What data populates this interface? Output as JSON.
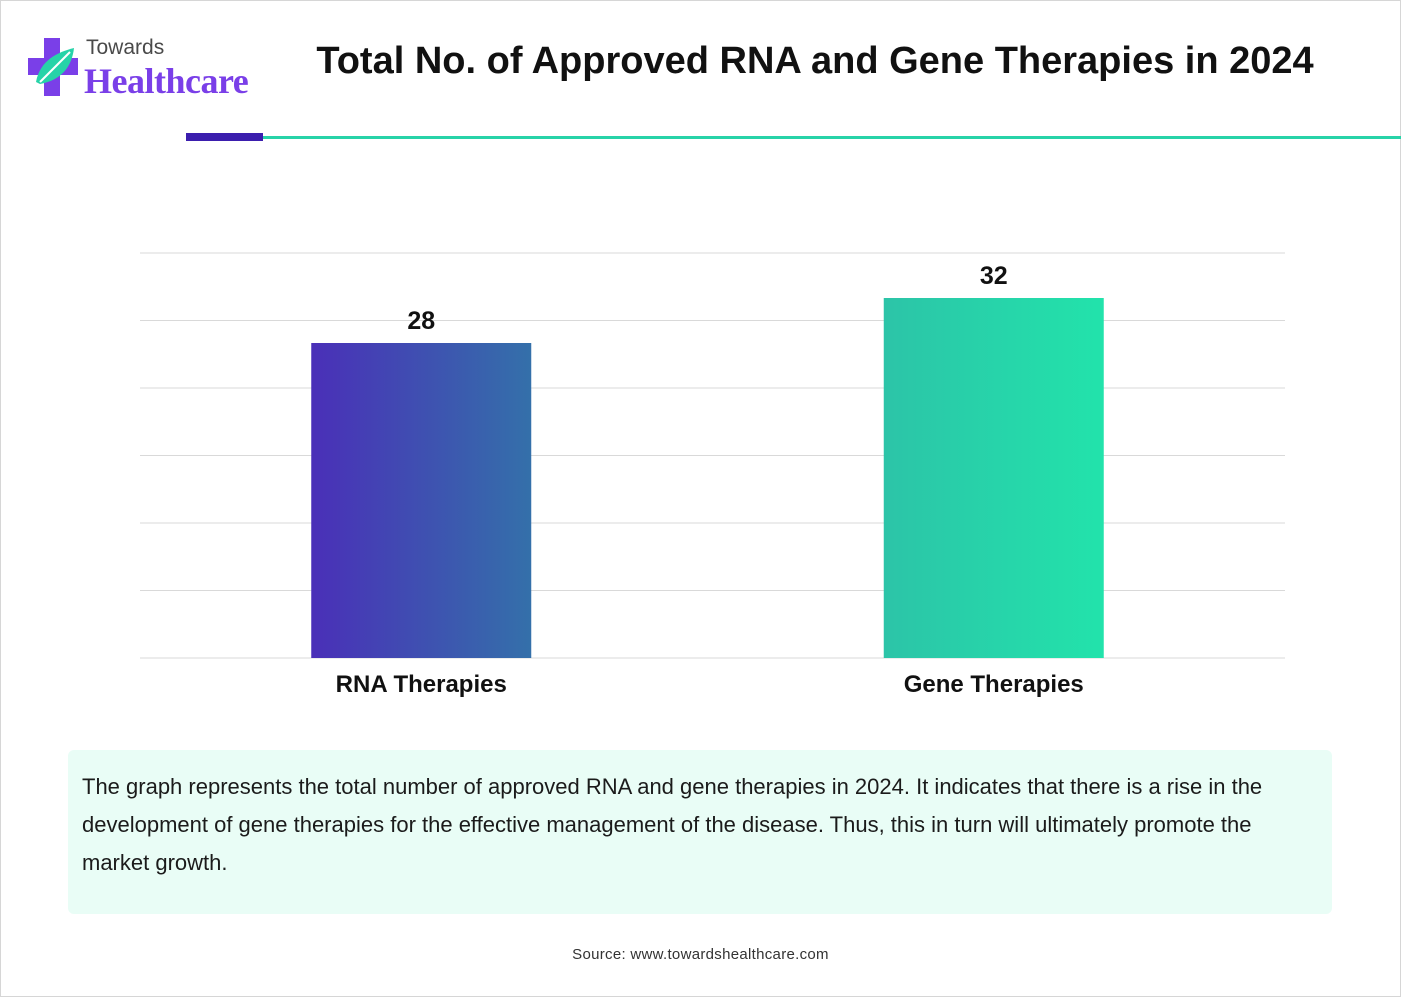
{
  "brand": {
    "top_word": "Towards",
    "main_word": "Healthcare",
    "colors": {
      "purple": "#7a3fe8",
      "teal": "#27d3a8",
      "navy": "#3b1eae"
    }
  },
  "title": "Total No. of Approved RNA and Gene Therapies in 2024",
  "chart_data": {
    "type": "bar",
    "title": "Total No. of Approved RNA and Gene Therapies in 2024",
    "categories": [
      "RNA Therapies",
      "Gene Therapies"
    ],
    "values": [
      28,
      32
    ],
    "ylim": [
      0,
      36
    ],
    "xlabel": "",
    "ylabel": "",
    "grid": true,
    "bar_gradients": [
      [
        "#4a2fb8",
        "#3470aa"
      ],
      [
        "#2cc4a8",
        "#22e3ab"
      ]
    ]
  },
  "description": "The graph represents the total number of approved RNA and gene therapies in 2024. It indicates that there is a rise in the development of gene therapies for the effective management of the disease. Thus, this in turn will ultimately promote the market growth.",
  "source": "Source: www.towardshealthcare.com"
}
